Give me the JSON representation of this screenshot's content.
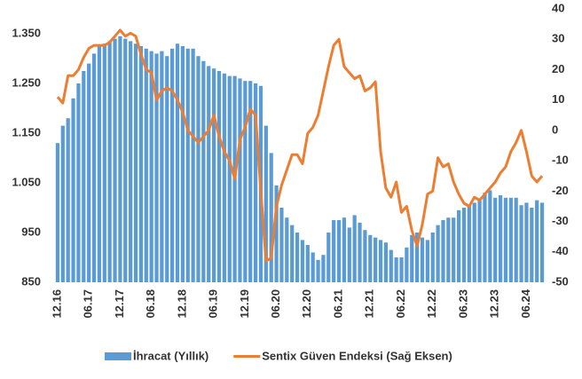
{
  "chart_data": {
    "type": "bar-line",
    "categories": [
      "12.16",
      null,
      null,
      null,
      null,
      null,
      "06.17",
      null,
      null,
      null,
      null,
      null,
      "12.17",
      null,
      null,
      null,
      null,
      null,
      "06.18",
      null,
      null,
      null,
      null,
      null,
      "12.18",
      null,
      null,
      null,
      null,
      null,
      "06.19",
      null,
      null,
      null,
      null,
      null,
      "12.19",
      null,
      null,
      null,
      null,
      null,
      "06.20",
      null,
      null,
      null,
      null,
      null,
      "12.20",
      null,
      null,
      null,
      null,
      null,
      "06.21",
      null,
      null,
      null,
      null,
      null,
      "12.21",
      null,
      null,
      null,
      null,
      null,
      "06.22",
      null,
      null,
      null,
      null,
      null,
      "12.22",
      null,
      null,
      null,
      null,
      null,
      "06.23",
      null,
      null,
      null,
      null,
      null,
      "12.23",
      null,
      null,
      null,
      null,
      null,
      "06.24",
      null,
      null,
      null
    ],
    "series": [
      {
        "name": "İhracat (Yıllık)",
        "color": "#5b9bd5",
        "kind": "bar",
        "axis": "y",
        "values": [
          1130,
          1165,
          1180,
          1220,
          1250,
          1275,
          1290,
          1310,
          1325,
          1330,
          1335,
          1340,
          1345,
          1340,
          1335,
          1330,
          1325,
          1320,
          1315,
          1310,
          1315,
          1305,
          1320,
          1330,
          1325,
          1320,
          1320,
          1305,
          1295,
          1285,
          1280,
          1275,
          1270,
          1265,
          1265,
          1260,
          1255,
          1255,
          1250,
          1245,
          1165,
          1110,
          1045,
          1000,
          980,
          965,
          950,
          935,
          925,
          910,
          895,
          905,
          950,
          975,
          975,
          980,
          960,
          985,
          970,
          955,
          945,
          940,
          935,
          930,
          915,
          900,
          900,
          920,
          945,
          950,
          940,
          935,
          950,
          965,
          975,
          980,
          980,
          995,
          1000,
          1005,
          1010,
          1015,
          1030,
          1035,
          1020,
          1025,
          1020,
          1020,
          1020,
          1005,
          1010,
          1000,
          1015,
          1010
        ]
      },
      {
        "name": "Sentix Güven Endeksi (Sağ Eksen)",
        "color": "#ed7d31",
        "kind": "line",
        "axis": "y2",
        "values": [
          11,
          9,
          18,
          18,
          20,
          24,
          27,
          28,
          28,
          28,
          29,
          31,
          33,
          31,
          32,
          31,
          25,
          20,
          19,
          10,
          13,
          14,
          13,
          10,
          6,
          0,
          -2,
          -4,
          -2,
          0,
          5,
          -2,
          -7,
          -10,
          -16,
          -3,
          1,
          7,
          5,
          -20,
          -43,
          -42,
          -25,
          -18,
          -13,
          -8,
          -8,
          -11,
          -1,
          1,
          5,
          13,
          21,
          28,
          30,
          21,
          19,
          17,
          18,
          13,
          14,
          16,
          -7,
          -19,
          -22,
          -17,
          -27,
          -25,
          -33,
          -38,
          -31,
          -21,
          -20,
          -9,
          -12,
          -11,
          -17,
          -21,
          -24,
          -25,
          -22,
          -23,
          -21,
          -19,
          -17,
          -14,
          -12,
          -7,
          -4,
          0,
          -7,
          -15,
          -17,
          -15
        ]
      }
    ],
    "ylim": [
      850,
      1400
    ],
    "yticks": [
      850,
      950,
      {
        "value": 1050,
        "label": "1.050"
      },
      {
        "value": 1150,
        "label": "1.150"
      },
      {
        "value": 1250,
        "label": "1.250"
      },
      {
        "value": 1350,
        "label": "1.350"
      }
    ],
    "y2lim": [
      -50,
      40
    ],
    "y2ticks": [
      -50,
      -40,
      -30,
      -20,
      -10,
      0,
      10,
      20,
      30,
      40
    ],
    "legend": "bottom"
  }
}
